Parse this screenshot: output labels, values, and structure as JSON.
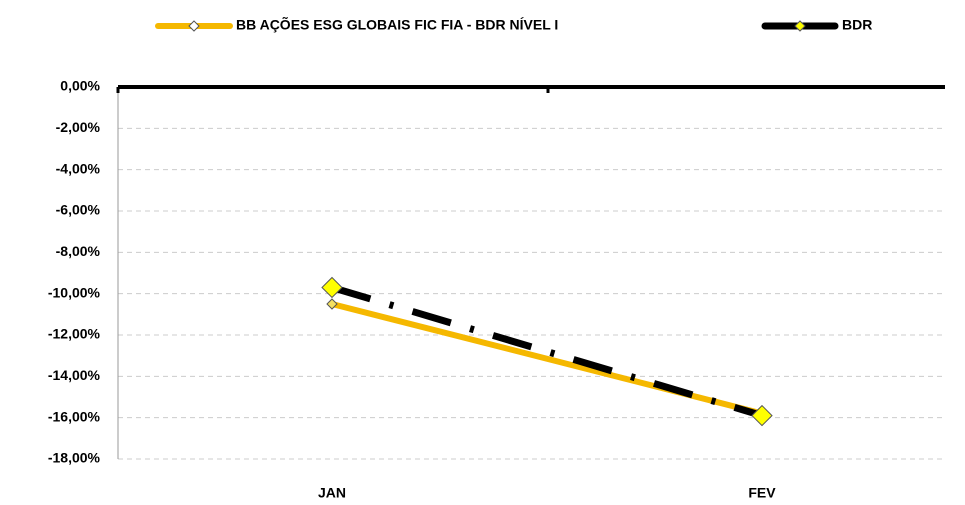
{
  "chart_data": {
    "type": "line",
    "categories": [
      "JAN",
      "FEV"
    ],
    "series": [
      {
        "name": "BB AÇÕES ESG GLOBAIS FIC FIA - BDR NÍVEL I",
        "color": "#f5b800",
        "values": [
          -10.5,
          -15.8
        ]
      },
      {
        "name": "BDR",
        "color": "#000000",
        "values": [
          -9.7,
          -15.9
        ]
      }
    ],
    "ylim": [
      -18,
      0
    ],
    "yticks": [
      {
        "value": 0,
        "label": "0,00%"
      },
      {
        "value": -2,
        "label": "-2,00%"
      },
      {
        "value": -4,
        "label": "-4,00%"
      },
      {
        "value": -6,
        "label": "-6,00%"
      },
      {
        "value": -8,
        "label": "-8,00%"
      },
      {
        "value": -10,
        "label": "-10,00%"
      },
      {
        "value": -12,
        "label": "-12,00%"
      },
      {
        "value": -14,
        "label": "-14,00%"
      },
      {
        "value": -16,
        "label": "-16,00%"
      },
      {
        "value": -18,
        "label": "-18,00%"
      }
    ],
    "grid": true
  }
}
